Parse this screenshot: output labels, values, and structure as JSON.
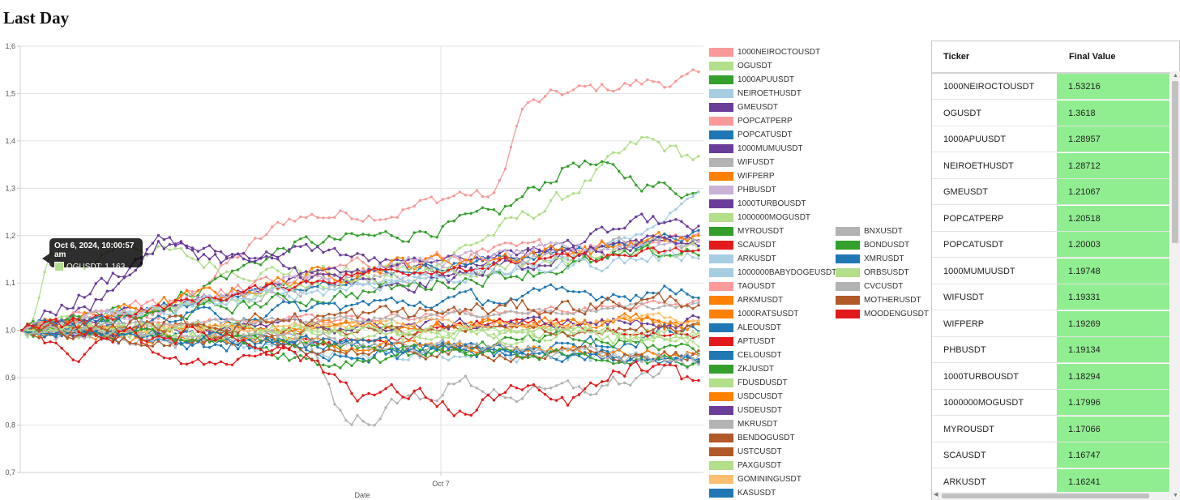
{
  "page_title": "Last Day",
  "chart_data": {
    "type": "line",
    "xlabel": "Date",
    "x_ticks": [
      "Oct 7"
    ],
    "ylim": [
      0.7,
      1.6
    ],
    "y_ticks": [
      "0,7",
      "0,8",
      "0,9",
      "1,0",
      "1,1",
      "1,2",
      "1,3",
      "1,4",
      "1,5",
      "1,6"
    ],
    "grid": true,
    "legend_position": "right",
    "tooltip": {
      "title": "Oct 6, 2024, 10:00:57 am",
      "series": "OGUSDT",
      "value_text": "OGUSDT: 1,163",
      "value": 1.163
    },
    "series": [
      {
        "name": "1000NEIROCTOUSDT",
        "color": "#f89a9a",
        "final": 1.53216
      },
      {
        "name": "OGUSDT",
        "color": "#b2df8a",
        "final": 1.3618
      },
      {
        "name": "1000APUUSDT",
        "color": "#33a02c",
        "final": 1.28957
      },
      {
        "name": "NEIROETHUSDT",
        "color": "#a6cee3",
        "final": 1.28712
      },
      {
        "name": "GMEUSDT",
        "color": "#6a3d9a",
        "final": 1.21067
      },
      {
        "name": "POPCATPERP",
        "color": "#fb9a99",
        "final": 1.20518
      },
      {
        "name": "POPCATUSDT",
        "color": "#1f78b4",
        "final": 1.20003
      },
      {
        "name": "1000MUMUUSDT",
        "color": "#6a3d9a",
        "final": 1.19748
      },
      {
        "name": "WIFUSDT",
        "color": "#b3b3b3",
        "final": 1.19331
      },
      {
        "name": "WIFPERP",
        "color": "#ff7f00",
        "final": 1.19269
      },
      {
        "name": "PHBUSDT",
        "color": "#cab2d6",
        "final": 1.19134
      },
      {
        "name": "1000TURBOUSDT",
        "color": "#6a3d9a",
        "final": 1.18294
      },
      {
        "name": "1000000MOGUSDT",
        "color": "#b2df8a",
        "final": 1.17996
      },
      {
        "name": "MYROUSDT",
        "color": "#33a02c",
        "final": 1.17066
      },
      {
        "name": "SCAUSDT",
        "color": "#e31a1c",
        "final": 1.16747
      },
      {
        "name": "ARKUSDT",
        "color": "#a6cee3",
        "final": 1.16241
      },
      {
        "name": "1000000BABYDOGEUSDT",
        "color": "#a6cee3"
      },
      {
        "name": "TAOUSDT",
        "color": "#fb9a99"
      },
      {
        "name": "ARKMUSDT",
        "color": "#ff7f00"
      },
      {
        "name": "1000RATSUSDT",
        "color": "#ff7f00"
      },
      {
        "name": "ALEOUSDT",
        "color": "#1f78b4"
      },
      {
        "name": "APTUSDT",
        "color": "#e31a1c"
      },
      {
        "name": "CELOUSDT",
        "color": "#1f78b4"
      },
      {
        "name": "ZKJUSDT",
        "color": "#33a02c"
      },
      {
        "name": "FDUSDUSDT",
        "color": "#b2df8a"
      },
      {
        "name": "USDCUSDT",
        "color": "#ff7f00"
      },
      {
        "name": "USDEUSDT",
        "color": "#6a3d9a"
      },
      {
        "name": "MKRUSDT",
        "color": "#b3b3b3"
      },
      {
        "name": "BENDOGUSDT",
        "color": "#b15928"
      },
      {
        "name": "USTCUSDT",
        "color": "#b15928"
      },
      {
        "name": "PAXGUSDT",
        "color": "#b2df8a"
      },
      {
        "name": "GOMININGUSDT",
        "color": "#fdbf6f"
      },
      {
        "name": "KASUSDT",
        "color": "#1f78b4"
      },
      {
        "name": "BNXUSDT",
        "color": "#b3b3b3"
      },
      {
        "name": "BONDUSDT",
        "color": "#33a02c"
      },
      {
        "name": "XMRUSDT",
        "color": "#1f78b4"
      },
      {
        "name": "ORBSUSDT",
        "color": "#b2df8a"
      },
      {
        "name": "CVCUSDT",
        "color": "#b3b3b3"
      },
      {
        "name": "MOTHERUSDT",
        "color": "#b15928"
      },
      {
        "name": "MOODENGUSDT",
        "color": "#e31a1c"
      }
    ]
  },
  "table": {
    "headers": [
      "Ticker",
      "Final Value"
    ],
    "rows": [
      {
        "ticker": "1000NEIROCTOUSDT",
        "value": "1.53216"
      },
      {
        "ticker": "OGUSDT",
        "value": "1.3618"
      },
      {
        "ticker": "1000APUUSDT",
        "value": "1.28957"
      },
      {
        "ticker": "NEIROETHUSDT",
        "value": "1.28712"
      },
      {
        "ticker": "GMEUSDT",
        "value": "1.21067"
      },
      {
        "ticker": "POPCATPERP",
        "value": "1.20518"
      },
      {
        "ticker": "POPCATUSDT",
        "value": "1.20003"
      },
      {
        "ticker": "1000MUMUUSDT",
        "value": "1.19748"
      },
      {
        "ticker": "WIFUSDT",
        "value": "1.19331"
      },
      {
        "ticker": "WIFPERP",
        "value": "1.19269"
      },
      {
        "ticker": "PHBUSDT",
        "value": "1.19134"
      },
      {
        "ticker": "1000TURBOUSDT",
        "value": "1.18294"
      },
      {
        "ticker": "1000000MOGUSDT",
        "value": "1.17996"
      },
      {
        "ticker": "MYROUSDT",
        "value": "1.17066"
      },
      {
        "ticker": "SCAUSDT",
        "value": "1.16747"
      },
      {
        "ticker": "ARKUSDT",
        "value": "1.16241"
      }
    ],
    "highlight_color": "#90ee90"
  },
  "scroll_arrows": {
    "up": "▲",
    "down": "▼",
    "left": "◀"
  }
}
